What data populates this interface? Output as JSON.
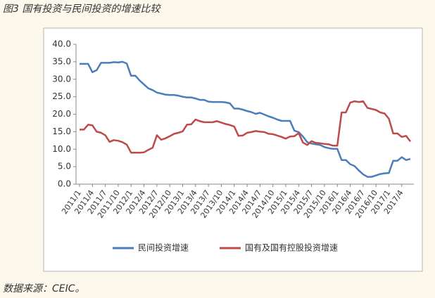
{
  "chart_data": {
    "type": "line",
    "title": "图3 国有投资与民间投资的增速比较",
    "source": "数据来源：CEIC。",
    "categories": [
      "2011/1",
      null,
      null,
      "2011/4",
      null,
      null,
      "2011/7",
      null,
      null,
      "2011/10",
      null,
      null,
      "2012/1",
      null,
      null,
      "2012/4",
      null,
      null,
      "2012/7",
      null,
      null,
      "2012/10",
      null,
      null,
      "2013/1",
      null,
      null,
      "2013/4",
      null,
      null,
      "2013/7",
      null,
      null,
      "2013/10",
      null,
      null,
      "2014/1",
      null,
      null,
      "2014/4",
      null,
      null,
      "2014/7",
      null,
      null,
      "2014/10",
      null,
      null,
      "2015/1",
      null,
      null,
      "2015/4",
      null,
      null,
      "2015/7",
      null,
      null,
      "2015/10",
      null,
      null,
      "2016/1",
      null,
      null,
      "2016/4",
      null,
      null,
      "2016/7",
      null,
      null,
      "2016/10",
      null,
      null,
      "2017/1",
      null,
      null,
      "2017/4",
      null,
      null
    ],
    "series": [
      {
        "name": "民间投资增速",
        "color": "#4a7ebb",
        "values": [
          34.4,
          34.4,
          34.4,
          32.0,
          32.6,
          34.7,
          34.7,
          34.7,
          34.9,
          34.8,
          35.0,
          34.5,
          31.0,
          31.0,
          29.6,
          28.5,
          27.4,
          26.9,
          26.2,
          25.9,
          25.6,
          25.5,
          25.5,
          25.3,
          25.0,
          24.8,
          24.8,
          24.5,
          24.1,
          24.1,
          23.6,
          23.5,
          23.5,
          23.5,
          23.4,
          23.1,
          21.6,
          21.6,
          21.3,
          20.9,
          20.6,
          20.1,
          20.4,
          19.9,
          19.4,
          19.0,
          18.5,
          18.1,
          18.1,
          18.1,
          15.3,
          14.9,
          13.6,
          12.0,
          11.6,
          11.4,
          11.2,
          10.6,
          10.3,
          10.1,
          10.1,
          6.9,
          6.9,
          5.7,
          5.2,
          3.9,
          2.8,
          2.1,
          2.1,
          2.5,
          2.9,
          3.1,
          3.2,
          6.7,
          6.7,
          7.7,
          6.9,
          7.2
        ]
      },
      {
        "name": "国有及国有控股投资增速",
        "color": "#be4b48",
        "values": [
          15.6,
          15.6,
          17.0,
          16.8,
          15.0,
          14.7,
          14.0,
          12.1,
          12.6,
          12.4,
          12.0,
          11.3,
          9.0,
          9.0,
          9.0,
          9.1,
          9.8,
          10.4,
          14.0,
          12.7,
          13.1,
          13.7,
          14.4,
          14.7,
          15.1,
          17.0,
          17.1,
          18.5,
          18.0,
          17.7,
          17.7,
          17.7,
          18.0,
          17.6,
          17.2,
          16.9,
          16.5,
          13.8,
          13.9,
          14.7,
          14.9,
          15.2,
          15.0,
          14.9,
          14.4,
          14.3,
          13.9,
          13.5,
          13.0,
          13.6,
          13.7,
          14.6,
          11.9,
          11.2,
          12.3,
          11.8,
          11.7,
          11.5,
          11.4,
          11.0,
          11.0,
          20.5,
          20.5,
          23.3,
          23.7,
          23.5,
          23.7,
          21.8,
          21.5,
          21.2,
          20.5,
          20.2,
          18.7,
          14.5,
          14.5,
          13.5,
          13.8,
          12.2
        ]
      }
    ],
    "ylim": [
      0,
      40
    ],
    "yticks": [
      {
        "value": 0,
        "label": "0.0"
      },
      {
        "value": 5,
        "label": "5.0"
      },
      {
        "value": 10,
        "label": "10.0"
      },
      {
        "value": 15,
        "label": "15.0"
      },
      {
        "value": 20,
        "label": "20.0"
      },
      {
        "value": 25,
        "label": "25.0"
      },
      {
        "value": 30,
        "label": "30.0"
      },
      {
        "value": 35,
        "label": "35.0"
      },
      {
        "value": 40,
        "label": "40.0"
      }
    ],
    "grid": false
  }
}
